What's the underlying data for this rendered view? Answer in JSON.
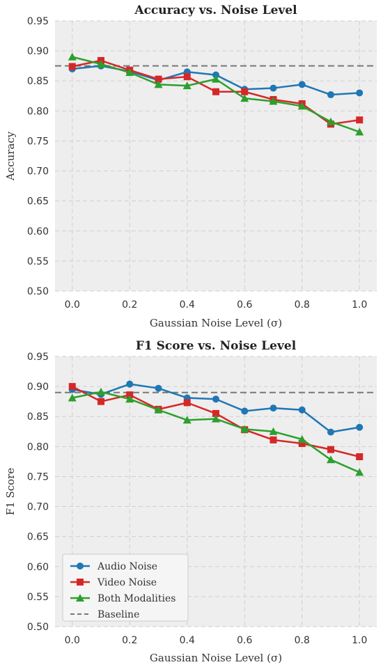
{
  "chart_data": [
    {
      "type": "line",
      "title": "Accuracy vs. Noise Level",
      "xlabel": "Gaussian Noise Level (σ)",
      "ylabel": "Accuracy",
      "x": [
        0.0,
        0.1,
        0.2,
        0.3,
        0.4,
        0.5,
        0.6,
        0.7,
        0.8,
        0.9,
        1.0
      ],
      "xticks": [
        "0.0",
        "0.2",
        "0.4",
        "0.6",
        "0.8",
        "1.0"
      ],
      "yticks": [
        "0.50",
        "0.55",
        "0.60",
        "0.65",
        "0.70",
        "0.75",
        "0.80",
        "0.85",
        "0.90",
        "0.95"
      ],
      "xlim": [
        -0.06,
        1.06
      ],
      "ylim": [
        0.5,
        0.95
      ],
      "grid": true,
      "legend": false,
      "baseline": 0.875,
      "series": [
        {
          "name": "Audio Noise",
          "color": "#1f77b4",
          "marker": "circle",
          "values": [
            0.87,
            0.875,
            0.866,
            0.851,
            0.865,
            0.86,
            0.836,
            0.838,
            0.844,
            0.827,
            0.83
          ]
        },
        {
          "name": "Video Noise",
          "color": "#d62728",
          "marker": "square",
          "values": [
            0.874,
            0.884,
            0.868,
            0.853,
            0.857,
            0.832,
            0.832,
            0.819,
            0.812,
            0.778,
            0.785
          ]
        },
        {
          "name": "Both Modalities",
          "color": "#2ca02c",
          "marker": "triangle",
          "values": [
            0.89,
            0.878,
            0.864,
            0.844,
            0.842,
            0.853,
            0.821,
            0.816,
            0.808,
            0.782,
            0.765
          ]
        }
      ]
    },
    {
      "type": "line",
      "title": "F1 Score vs. Noise Level",
      "xlabel": "Gaussian Noise Level (σ)",
      "ylabel": "F1 Score",
      "x": [
        0.0,
        0.1,
        0.2,
        0.3,
        0.4,
        0.5,
        0.6,
        0.7,
        0.8,
        0.9,
        1.0
      ],
      "xticks": [
        "0.0",
        "0.2",
        "0.4",
        "0.6",
        "0.8",
        "1.0"
      ],
      "yticks": [
        "0.50",
        "0.55",
        "0.60",
        "0.65",
        "0.70",
        "0.75",
        "0.80",
        "0.85",
        "0.90",
        "0.95"
      ],
      "xlim": [
        -0.06,
        1.06
      ],
      "ylim": [
        0.5,
        0.95
      ],
      "grid": true,
      "legend": true,
      "legend_position": "bottom-left",
      "baseline": 0.89,
      "series": [
        {
          "name": "Audio Noise",
          "color": "#1f77b4",
          "marker": "circle",
          "values": [
            0.895,
            0.887,
            0.904,
            0.897,
            0.881,
            0.879,
            0.859,
            0.864,
            0.861,
            0.824,
            0.832
          ]
        },
        {
          "name": "Video Noise",
          "color": "#d62728",
          "marker": "square",
          "values": [
            0.9,
            0.875,
            0.886,
            0.862,
            0.873,
            0.855,
            0.828,
            0.811,
            0.805,
            0.795,
            0.783
          ]
        },
        {
          "name": "Both Modalities",
          "color": "#2ca02c",
          "marker": "triangle",
          "values": [
            0.881,
            0.891,
            0.879,
            0.861,
            0.844,
            0.846,
            0.829,
            0.825,
            0.812,
            0.778,
            0.757
          ]
        }
      ]
    }
  ],
  "legend_entries": [
    {
      "label": "Audio Noise",
      "color": "#1f77b4",
      "marker": "circle",
      "style": "solid"
    },
    {
      "label": "Video Noise",
      "color": "#d62728",
      "marker": "square",
      "style": "solid"
    },
    {
      "label": "Both Modalities",
      "color": "#2ca02c",
      "marker": "triangle",
      "style": "solid"
    },
    {
      "label": "Baseline",
      "color": "#777777",
      "marker": "none",
      "style": "dashed"
    }
  ]
}
